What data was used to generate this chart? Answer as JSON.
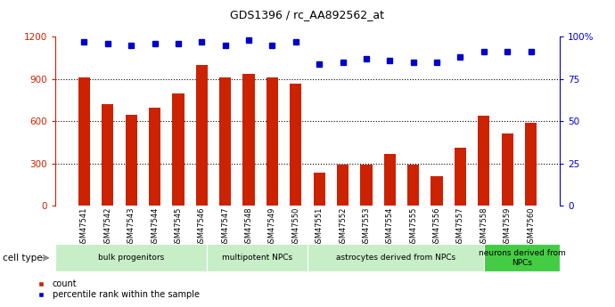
{
  "title": "GDS1396 / rc_AA892562_at",
  "samples": [
    "GSM47541",
    "GSM47542",
    "GSM47543",
    "GSM47544",
    "GSM47545",
    "GSM47546",
    "GSM47547",
    "GSM47548",
    "GSM47549",
    "GSM47550",
    "GSM47551",
    "GSM47552",
    "GSM47553",
    "GSM47554",
    "GSM47555",
    "GSM47556",
    "GSM47557",
    "GSM47558",
    "GSM47559",
    "GSM47560"
  ],
  "counts": [
    910,
    720,
    645,
    695,
    800,
    1000,
    910,
    940,
    910,
    870,
    235,
    295,
    295,
    370,
    290,
    210,
    415,
    640,
    515,
    590
  ],
  "percentiles": [
    97,
    96,
    95,
    96,
    96,
    97,
    95,
    98,
    95,
    97,
    84,
    85,
    87,
    86,
    85,
    85,
    88,
    91,
    91,
    91
  ],
  "cell_type_groups": [
    {
      "label": "bulk progenitors",
      "start": 0,
      "end": 5,
      "color": "#c8eec8"
    },
    {
      "label": "multipotent NPCs",
      "start": 6,
      "end": 9,
      "color": "#c8eec8"
    },
    {
      "label": "astrocytes derived from NPCs",
      "start": 10,
      "end": 16,
      "color": "#c8eec8"
    },
    {
      "label": "neurons derived from\nNPCs",
      "start": 17,
      "end": 19,
      "color": "#44cc44"
    }
  ],
  "bar_color": "#cc2200",
  "dot_color": "#0000cc",
  "ylim_left": [
    0,
    1200
  ],
  "ylim_right": [
    0,
    100
  ],
  "yticks_left": [
    0,
    300,
    600,
    900,
    1200
  ],
  "yticks_right": [
    0,
    25,
    50,
    75,
    100
  ],
  "yticklabels_right": [
    "0",
    "25",
    "50",
    "75",
    "100%"
  ],
  "xlabel": "cell type",
  "legend_count_label": "count",
  "legend_percentile_label": "percentile rank within the sample",
  "bg_color": "#ffffff",
  "hgrid_vals": [
    300,
    600,
    900
  ]
}
